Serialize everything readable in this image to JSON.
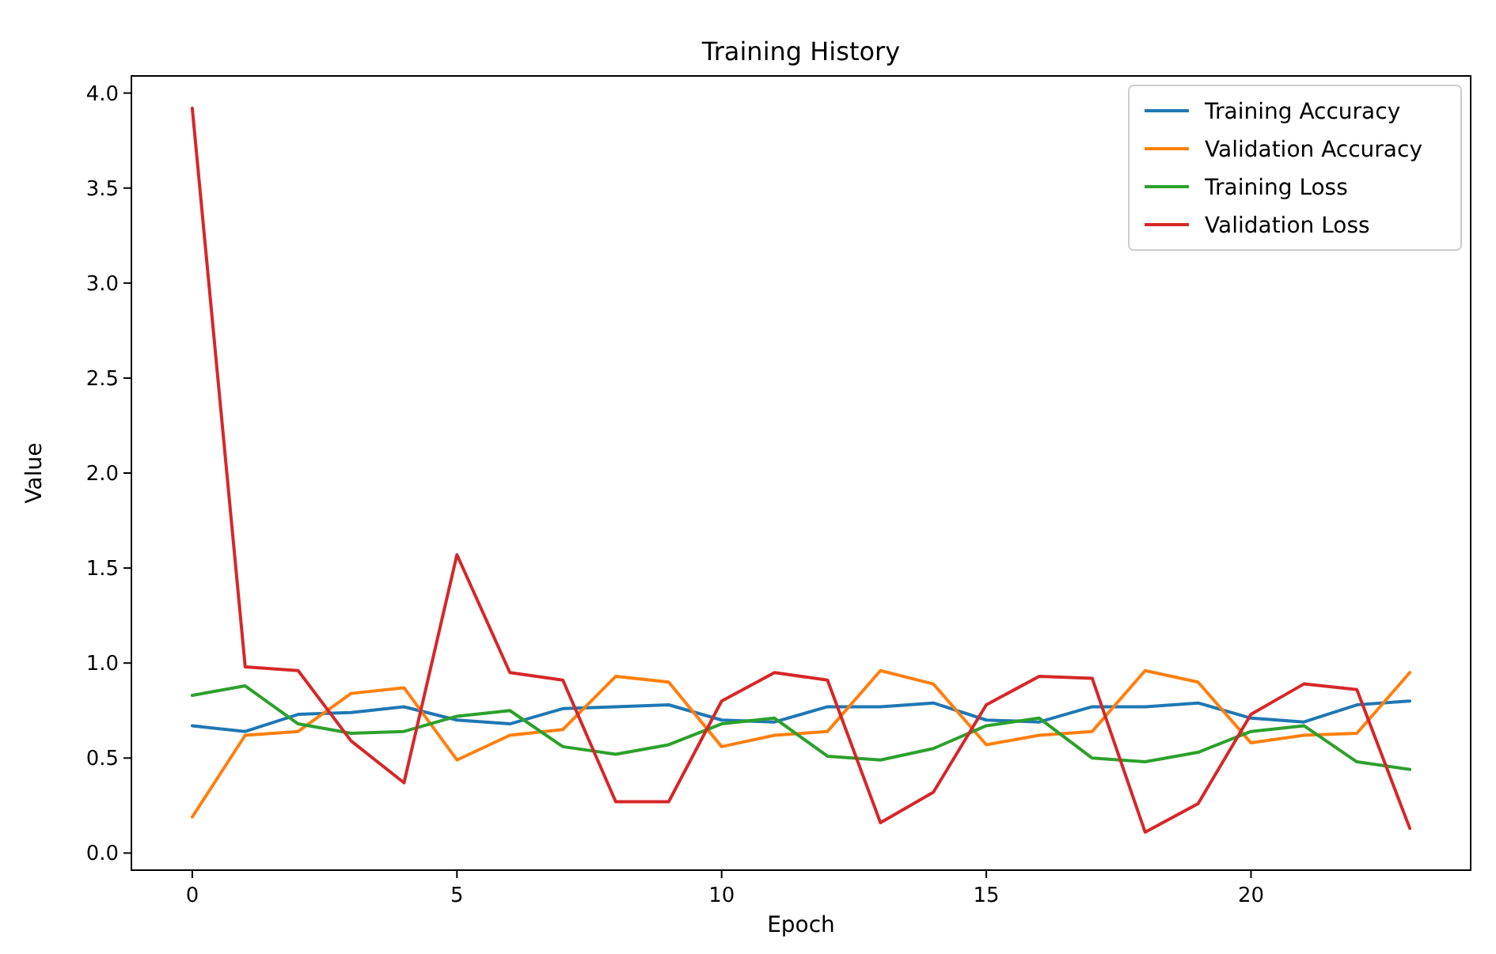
{
  "chart_data": {
    "type": "line",
    "title": "Training History",
    "xlabel": "Epoch",
    "ylabel": "Value",
    "x": [
      0,
      1,
      2,
      3,
      4,
      5,
      6,
      7,
      8,
      9,
      10,
      11,
      12,
      13,
      14,
      15,
      16,
      17,
      18,
      19,
      20,
      21,
      22,
      23
    ],
    "series": [
      {
        "name": "Training Accuracy",
        "color": "#1f77b4",
        "values": [
          0.67,
          0.64,
          0.73,
          0.74,
          0.77,
          0.7,
          0.68,
          0.76,
          0.77,
          0.78,
          0.7,
          0.69,
          0.77,
          0.77,
          0.79,
          0.7,
          0.69,
          0.77,
          0.77,
          0.79,
          0.71,
          0.69,
          0.78,
          0.8
        ]
      },
      {
        "name": "Validation Accuracy",
        "color": "#ff7f0e",
        "values": [
          0.19,
          0.62,
          0.64,
          0.84,
          0.87,
          0.49,
          0.62,
          0.65,
          0.93,
          0.9,
          0.56,
          0.62,
          0.64,
          0.96,
          0.89,
          0.57,
          0.62,
          0.64,
          0.96,
          0.9,
          0.58,
          0.62,
          0.63,
          0.95
        ]
      },
      {
        "name": "Training Loss",
        "color": "#2ca02c",
        "values": [
          0.83,
          0.88,
          0.68,
          0.63,
          0.64,
          0.72,
          0.75,
          0.56,
          0.52,
          0.57,
          0.68,
          0.71,
          0.51,
          0.49,
          0.55,
          0.67,
          0.71,
          0.5,
          0.48,
          0.53,
          0.64,
          0.67,
          0.48,
          0.44
        ]
      },
      {
        "name": "Validation Loss",
        "color": "#d62728",
        "values": [
          3.92,
          0.98,
          0.96,
          0.59,
          0.37,
          1.57,
          0.95,
          0.91,
          0.27,
          0.27,
          0.8,
          0.95,
          0.91,
          0.16,
          0.32,
          0.78,
          0.93,
          0.92,
          0.11,
          0.26,
          0.73,
          0.89,
          0.86,
          0.13
        ]
      }
    ],
    "xlim": [
      -1.15,
      24.15
    ],
    "xticks": [
      0,
      5,
      10,
      15,
      20
    ],
    "ylim": [
      -0.09,
      4.09
    ],
    "yticks": [
      {
        "value": 0,
        "label": "0.0"
      },
      {
        "value": 0.5,
        "label": "0.5"
      },
      {
        "value": 1,
        "label": "1.0"
      },
      {
        "value": 1.5,
        "label": "1.5"
      },
      {
        "value": 2,
        "label": "2.0"
      },
      {
        "value": 2.5,
        "label": "2.5"
      },
      {
        "value": 3,
        "label": "3.0"
      },
      {
        "value": 3.5,
        "label": "3.5"
      },
      {
        "value": 4,
        "label": "4.0"
      }
    ],
    "legend": "top right",
    "grid": false,
    "marker": "none",
    "line_style": "solid"
  }
}
